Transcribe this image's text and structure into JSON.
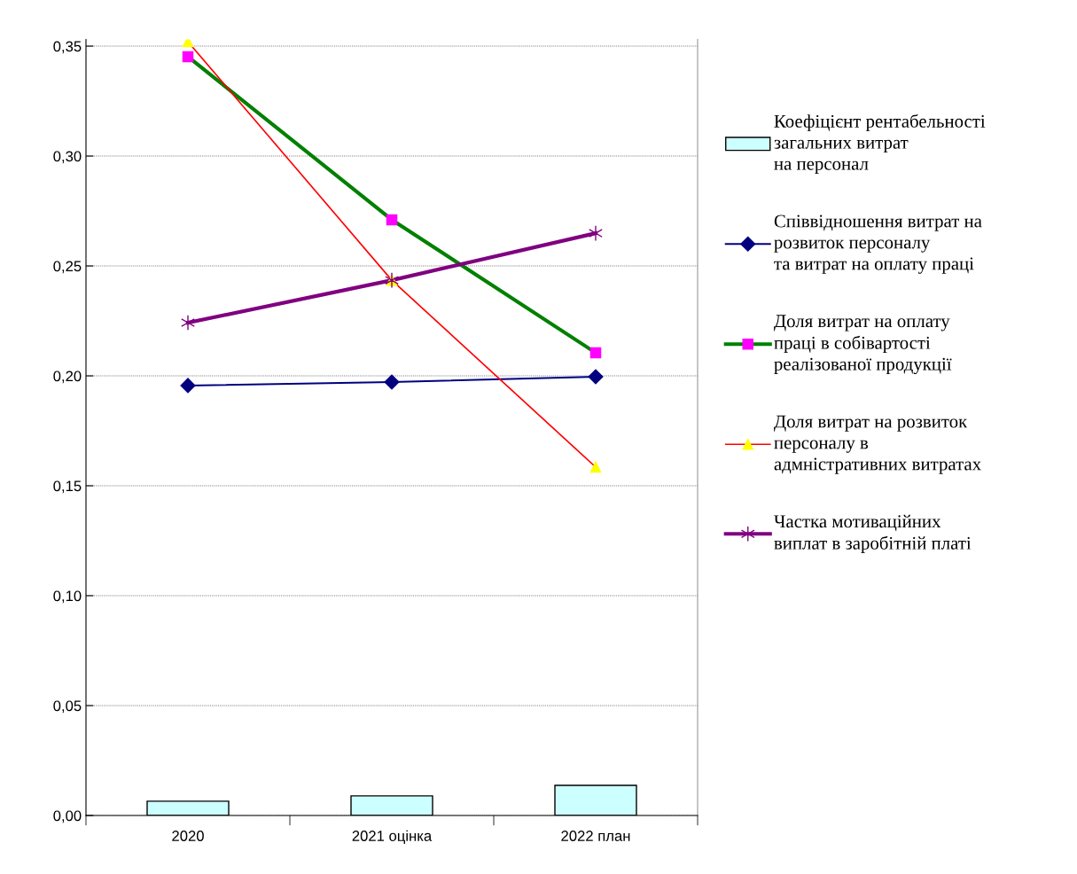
{
  "chart_data": {
    "type": "line",
    "categories": [
      "2020",
      "2021 оцінка",
      "2022 план"
    ],
    "ylim": [
      0,
      0.353
    ],
    "yticks": [
      {
        "value": 0,
        "label": "0,00"
      },
      {
        "value": 0.05,
        "label": "0,05"
      },
      {
        "value": 0.1,
        "label": "0,10"
      },
      {
        "value": 0.15,
        "label": "0,15"
      },
      {
        "value": 0.2,
        "label": "0,20"
      },
      {
        "value": 0.25,
        "label": "0,25"
      },
      {
        "value": 0.3,
        "label": "0,30"
      },
      {
        "value": 0.35,
        "label": "0,35"
      }
    ],
    "grid": "y",
    "legend": "right",
    "series": [
      {
        "type": "bar",
        "name": "Коефіцієнт рентабельності\nзагальних витрат\nна персонал",
        "color": "#ccffff",
        "values": [
          0.0065,
          0.0089,
          0.0137
        ]
      },
      {
        "name": "Співвідношення витрат на\nрозвиток персоналу\nта витрат на оплату праці",
        "color": "#000080",
        "marker": "diamond",
        "values": [
          0.1956,
          0.1972,
          0.1996
        ]
      },
      {
        "name": "Доля витрат на оплату\nпраці в собівартості\nреалізованої продукції",
        "color": "#008000",
        "marker": "square",
        "colors": [
          "#ff00ff",
          "#ff00ff",
          "#ff00ff"
        ],
        "values": [
          0.3452,
          0.271,
          0.2105
        ]
      },
      {
        "name": "Доля витрат на розвиток\nперсоналу в\nадмністративних витратах",
        "color": "#ff0000",
        "marker": "triangle",
        "colors": [
          "#ffff00",
          "#ffff00",
          "#ffff00"
        ],
        "values": [
          0.352,
          0.2435,
          0.1585
        ]
      },
      {
        "name": "Частка мотиваційних\nвиплат в заробітній платі",
        "color": "#800080",
        "marker": "cross",
        "values": [
          0.2242,
          0.2435,
          0.2649
        ]
      }
    ]
  }
}
